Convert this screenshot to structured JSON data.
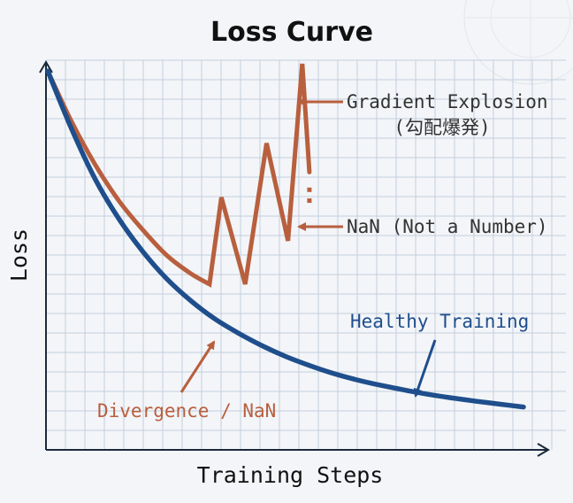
{
  "chart_data": {
    "type": "line",
    "title": "Loss Curve",
    "xlabel": "Training Steps",
    "ylabel": "Loss",
    "xlim": [
      0,
      100
    ],
    "ylim": [
      0,
      100
    ],
    "grid": true,
    "series": [
      {
        "name": "Healthy Training",
        "color": "#1f4e8c",
        "x": [
          0,
          5,
          10,
          15,
          20,
          25,
          30,
          35,
          40,
          45,
          50,
          55,
          60,
          65,
          70,
          75,
          80,
          85,
          90,
          95,
          100
        ],
        "y": [
          98,
          82,
          68,
          57,
          48,
          40.5,
          34.5,
          29.5,
          25.5,
          22,
          19,
          16.5,
          14.3,
          12.5,
          11,
          9.7,
          8.5,
          7.5,
          6.6,
          5.8,
          5
        ]
      },
      {
        "name": "Divergence / NaN",
        "color": "#b85f3e",
        "x": [
          0,
          5,
          10,
          15,
          20,
          25,
          30,
          34,
          36.5,
          41.5,
          46,
          50.5,
          53.5,
          55
        ],
        "y": [
          98,
          84,
          72,
          62,
          54,
          47,
          42,
          39,
          63,
          39,
          78,
          51,
          100,
          70
        ]
      }
    ],
    "nan_marks": [
      {
        "x": 55,
        "y": 65
      },
      {
        "x": 55,
        "y": 62
      }
    ],
    "annotations": [
      {
        "id": "gradient-explosion",
        "lines": [
          "Gradient Explosion",
          "(勾配爆発)"
        ],
        "color": "#333333"
      },
      {
        "id": "nan",
        "lines": [
          "NaN (Not a Number)"
        ],
        "color": "#333333"
      },
      {
        "id": "healthy",
        "lines": [
          "Healthy Training"
        ],
        "color": "#1f4e8c"
      },
      {
        "id": "divergence",
        "lines": [
          "Divergence / NaN"
        ],
        "color": "#b85f3e"
      }
    ]
  }
}
